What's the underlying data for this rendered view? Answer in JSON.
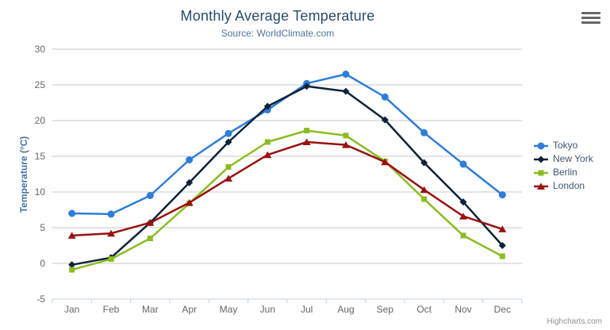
{
  "header": {
    "title": "Monthly Average Temperature",
    "subtitle": "Source: WorldClimate.com"
  },
  "chart_data": {
    "type": "line",
    "categories": [
      "Jan",
      "Feb",
      "Mar",
      "Apr",
      "May",
      "Jun",
      "Jul",
      "Aug",
      "Sep",
      "Oct",
      "Nov",
      "Dec"
    ],
    "series": [
      {
        "name": "Tokyo",
        "color": "#2f7ed8",
        "marker": "circle",
        "values": [
          7.0,
          6.9,
          9.5,
          14.5,
          18.2,
          21.5,
          25.2,
          26.5,
          23.3,
          18.3,
          13.9,
          9.6
        ]
      },
      {
        "name": "New York",
        "color": "#0d233a",
        "marker": "diamond",
        "values": [
          -0.2,
          0.8,
          5.7,
          11.3,
          17.0,
          22.0,
          24.8,
          24.1,
          20.1,
          14.1,
          8.6,
          2.5
        ]
      },
      {
        "name": "Berlin",
        "color": "#8bbc21",
        "marker": "square",
        "values": [
          -0.9,
          0.6,
          3.5,
          8.4,
          13.5,
          17.0,
          18.6,
          17.9,
          14.3,
          9.0,
          3.9,
          1.0
        ]
      },
      {
        "name": "London",
        "color": "#991111",
        "marker": "triangle",
        "values": [
          3.9,
          4.2,
          5.7,
          8.5,
          11.9,
          15.2,
          17.0,
          16.6,
          14.2,
          10.3,
          6.6,
          4.8
        ]
      }
    ],
    "title": "Monthly Average Temperature",
    "subtitle": "Source: WorldClimate.com",
    "xlabel": "",
    "ylabel": "Temperature (°C)",
    "ylim": [
      -5,
      30
    ],
    "ytick_step": 5,
    "grid": true,
    "legend_position": "right",
    "grid_color": "#c8c8c8",
    "axis_line_color": "#c0d0e0",
    "tick_label_color": "#666666"
  },
  "credits": {
    "label": "Highcharts.com"
  },
  "menu": {
    "icon": "hamburger-menu-icon"
  }
}
